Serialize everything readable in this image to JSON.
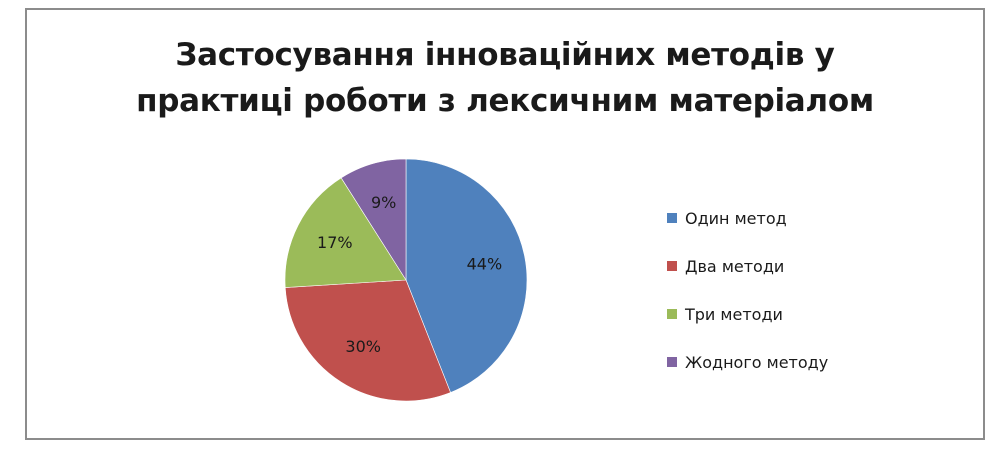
{
  "chart_data": {
    "type": "pie",
    "title_lines": [
      "Застосування інноваційних методів у",
      "практиці роботи з лексичним матеріалом"
    ],
    "categories": [
      "Один метод",
      "Два методи",
      "Три методи",
      "Жодного методу"
    ],
    "values": [
      44,
      30,
      17,
      9
    ],
    "data_labels": [
      "44%",
      "30%",
      "17%",
      "9%"
    ],
    "colors": [
      "#4f81bd",
      "#c0504d",
      "#9bbb59",
      "#8064a2"
    ],
    "legend_position": "right",
    "start_angle": "12 o'clock",
    "direction": "clockwise"
  }
}
